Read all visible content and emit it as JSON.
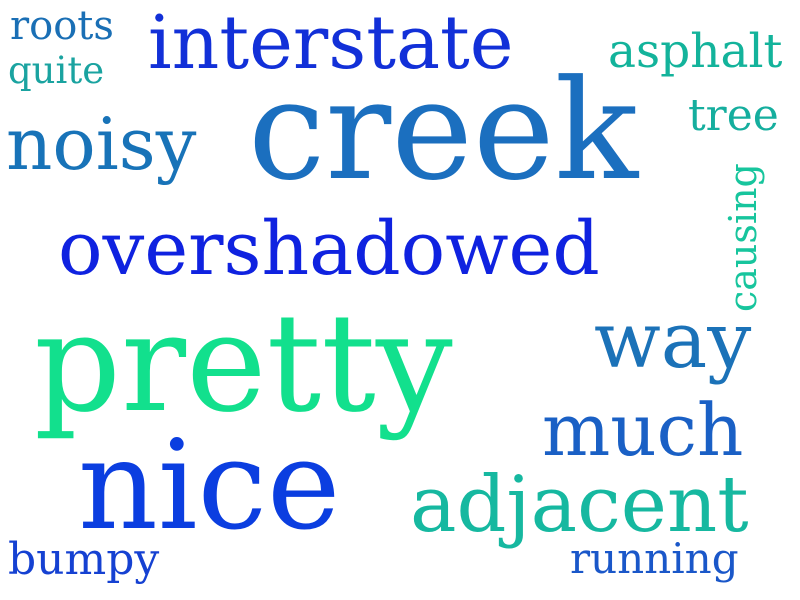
{
  "words": {
    "roots": {
      "text": "roots",
      "color": "#1a6fb5"
    },
    "quite": {
      "text": "quite",
      "color": "#1aa3a0"
    },
    "interstate": {
      "text": "interstate",
      "color": "#1230d8"
    },
    "asphalt": {
      "text": "asphalt",
      "color": "#13b39b"
    },
    "noisy": {
      "text": "noisy",
      "color": "#1873b8"
    },
    "creek": {
      "text": "creek",
      "color": "#1b6fbf"
    },
    "tree": {
      "text": "tree",
      "color": "#15ae9e"
    },
    "overshadowed": {
      "text": "overshadowed",
      "color": "#0f22e0"
    },
    "causing": {
      "text": "causing",
      "color": "#17c59d"
    },
    "pretty": {
      "text": "pretty",
      "color": "#12e08d"
    },
    "way": {
      "text": "way",
      "color": "#1b72b8"
    },
    "much": {
      "text": "much",
      "color": "#1a60c5"
    },
    "nice": {
      "text": "nice",
      "color": "#0b3ee0"
    },
    "adjacent": {
      "text": "adjacent",
      "color": "#16b8a0"
    },
    "bumpy": {
      "text": "bumpy",
      "color": "#1541d2"
    },
    "running": {
      "text": "running",
      "color": "#1a57c9"
    }
  }
}
